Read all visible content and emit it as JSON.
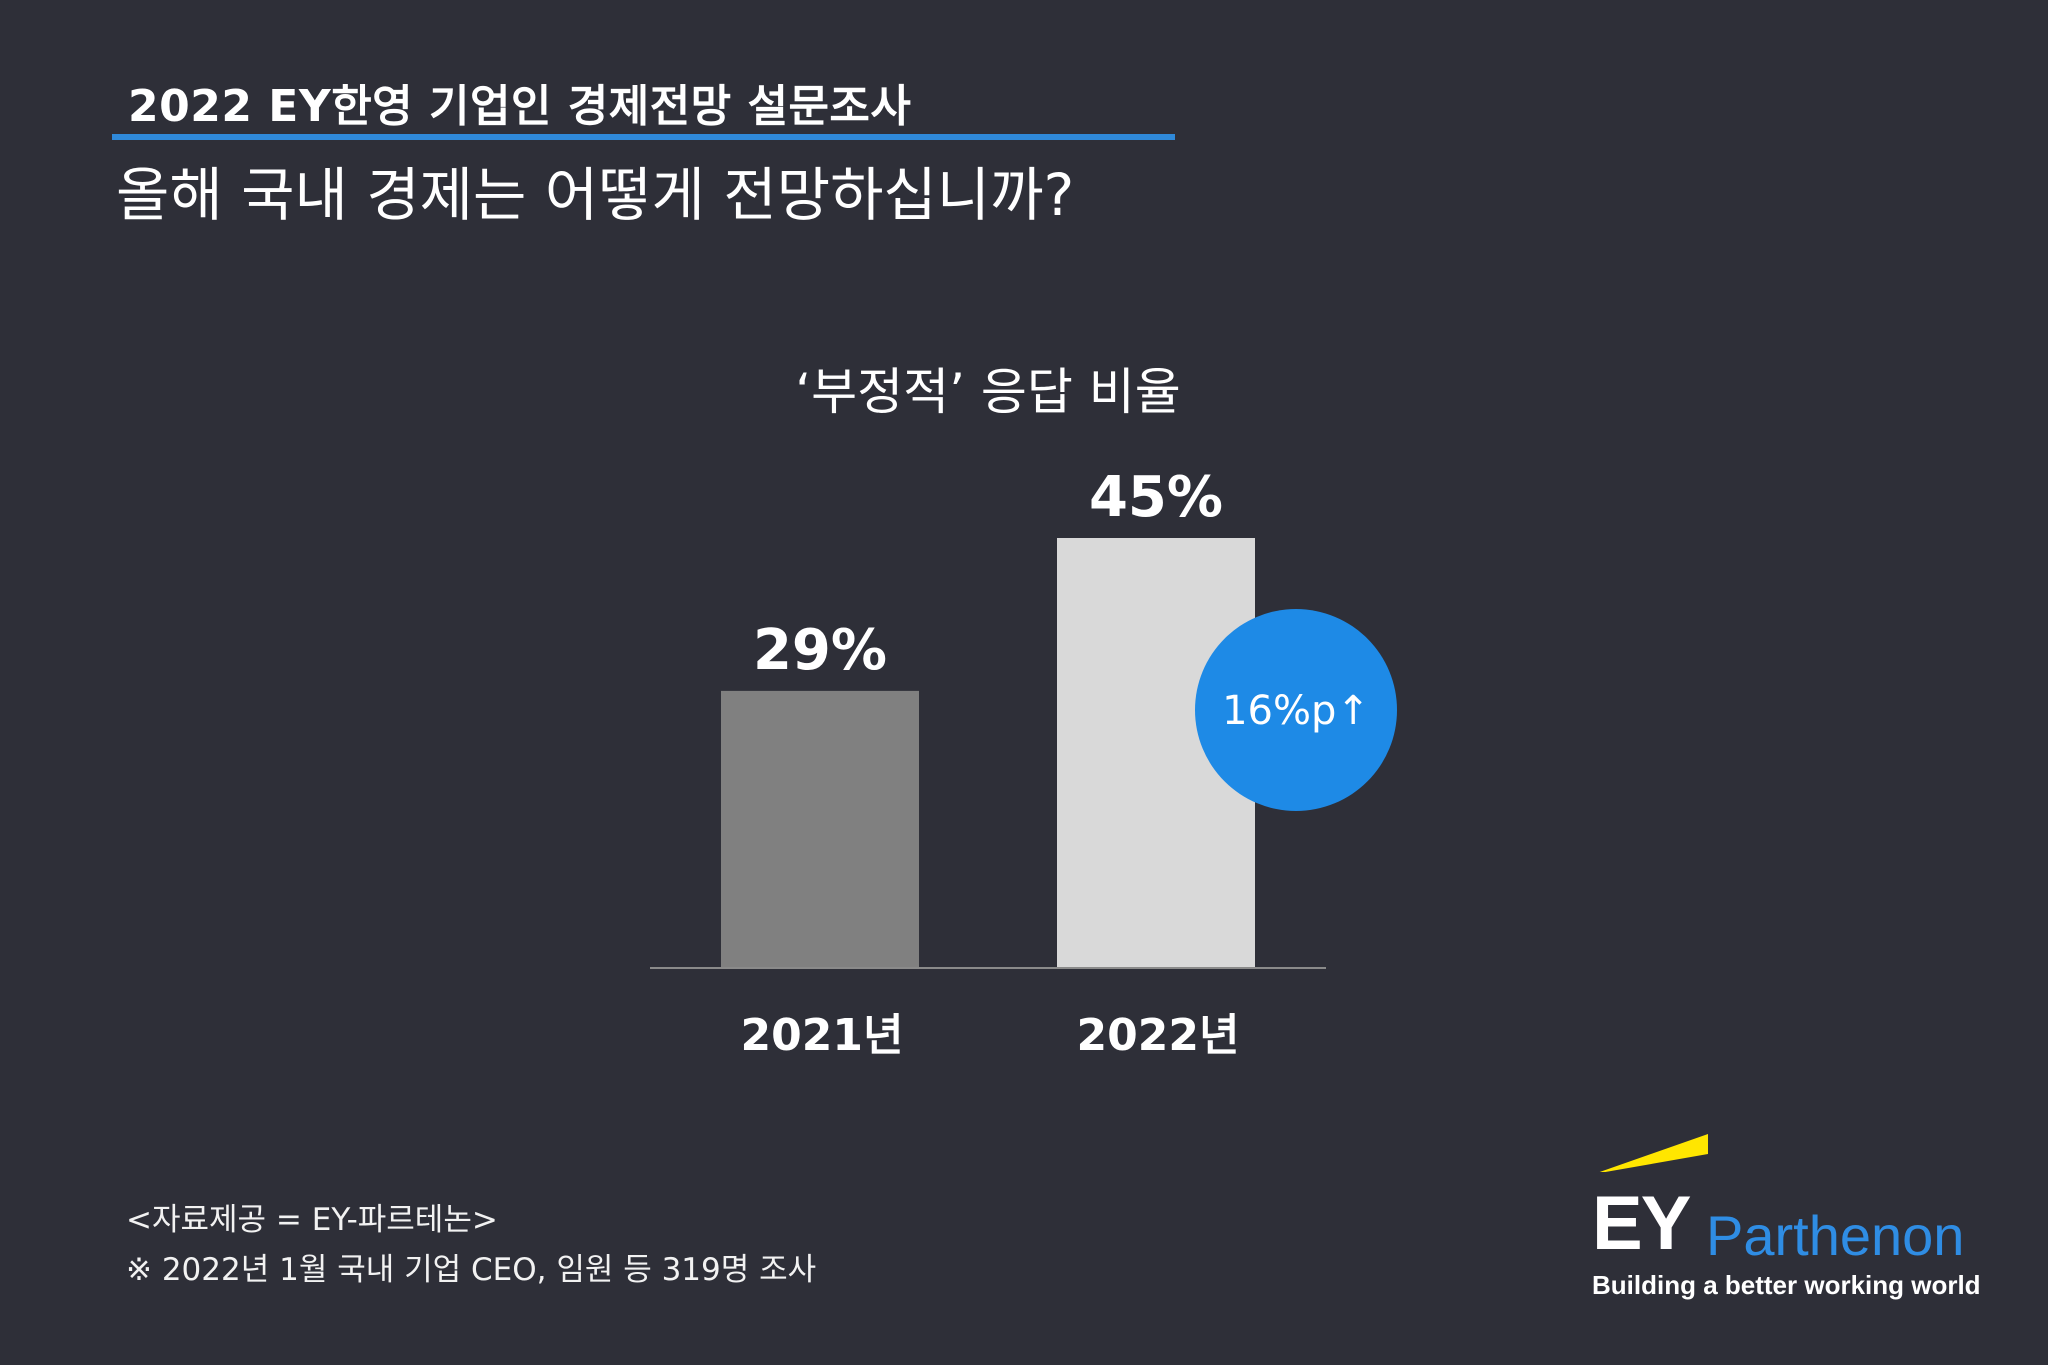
{
  "header": {
    "survey_title": "2022 EY한영 기업인 경제전망 설문조사",
    "question": "올해 국내 경제는 어떻게 전망하십니까?"
  },
  "colors": {
    "background": "#2e2f38",
    "accent_rule": "#2f89d9",
    "bar_2021": "#808080",
    "bar_2022": "#d9d9d9",
    "badge": "#1e8ae6",
    "logo_yellow": "#ffe600"
  },
  "chart_data": {
    "type": "bar",
    "title": "‘부정적’ 응답 비율",
    "categories": [
      "2021년",
      "2022년"
    ],
    "values": [
      29,
      45
    ],
    "value_labels": [
      "29%",
      "45%"
    ],
    "ylim": [
      0,
      45
    ],
    "grid": false,
    "annotation": "16%p↑"
  },
  "footer": {
    "source": "<자료제공 = EY-파르테논>",
    "note": "※ 2022년 1월 국내 기업 CEO, 임원 등 319명 조사"
  },
  "logo": {
    "mark": "EY",
    "name": "Parthenon",
    "tagline": "Building a better working world"
  }
}
